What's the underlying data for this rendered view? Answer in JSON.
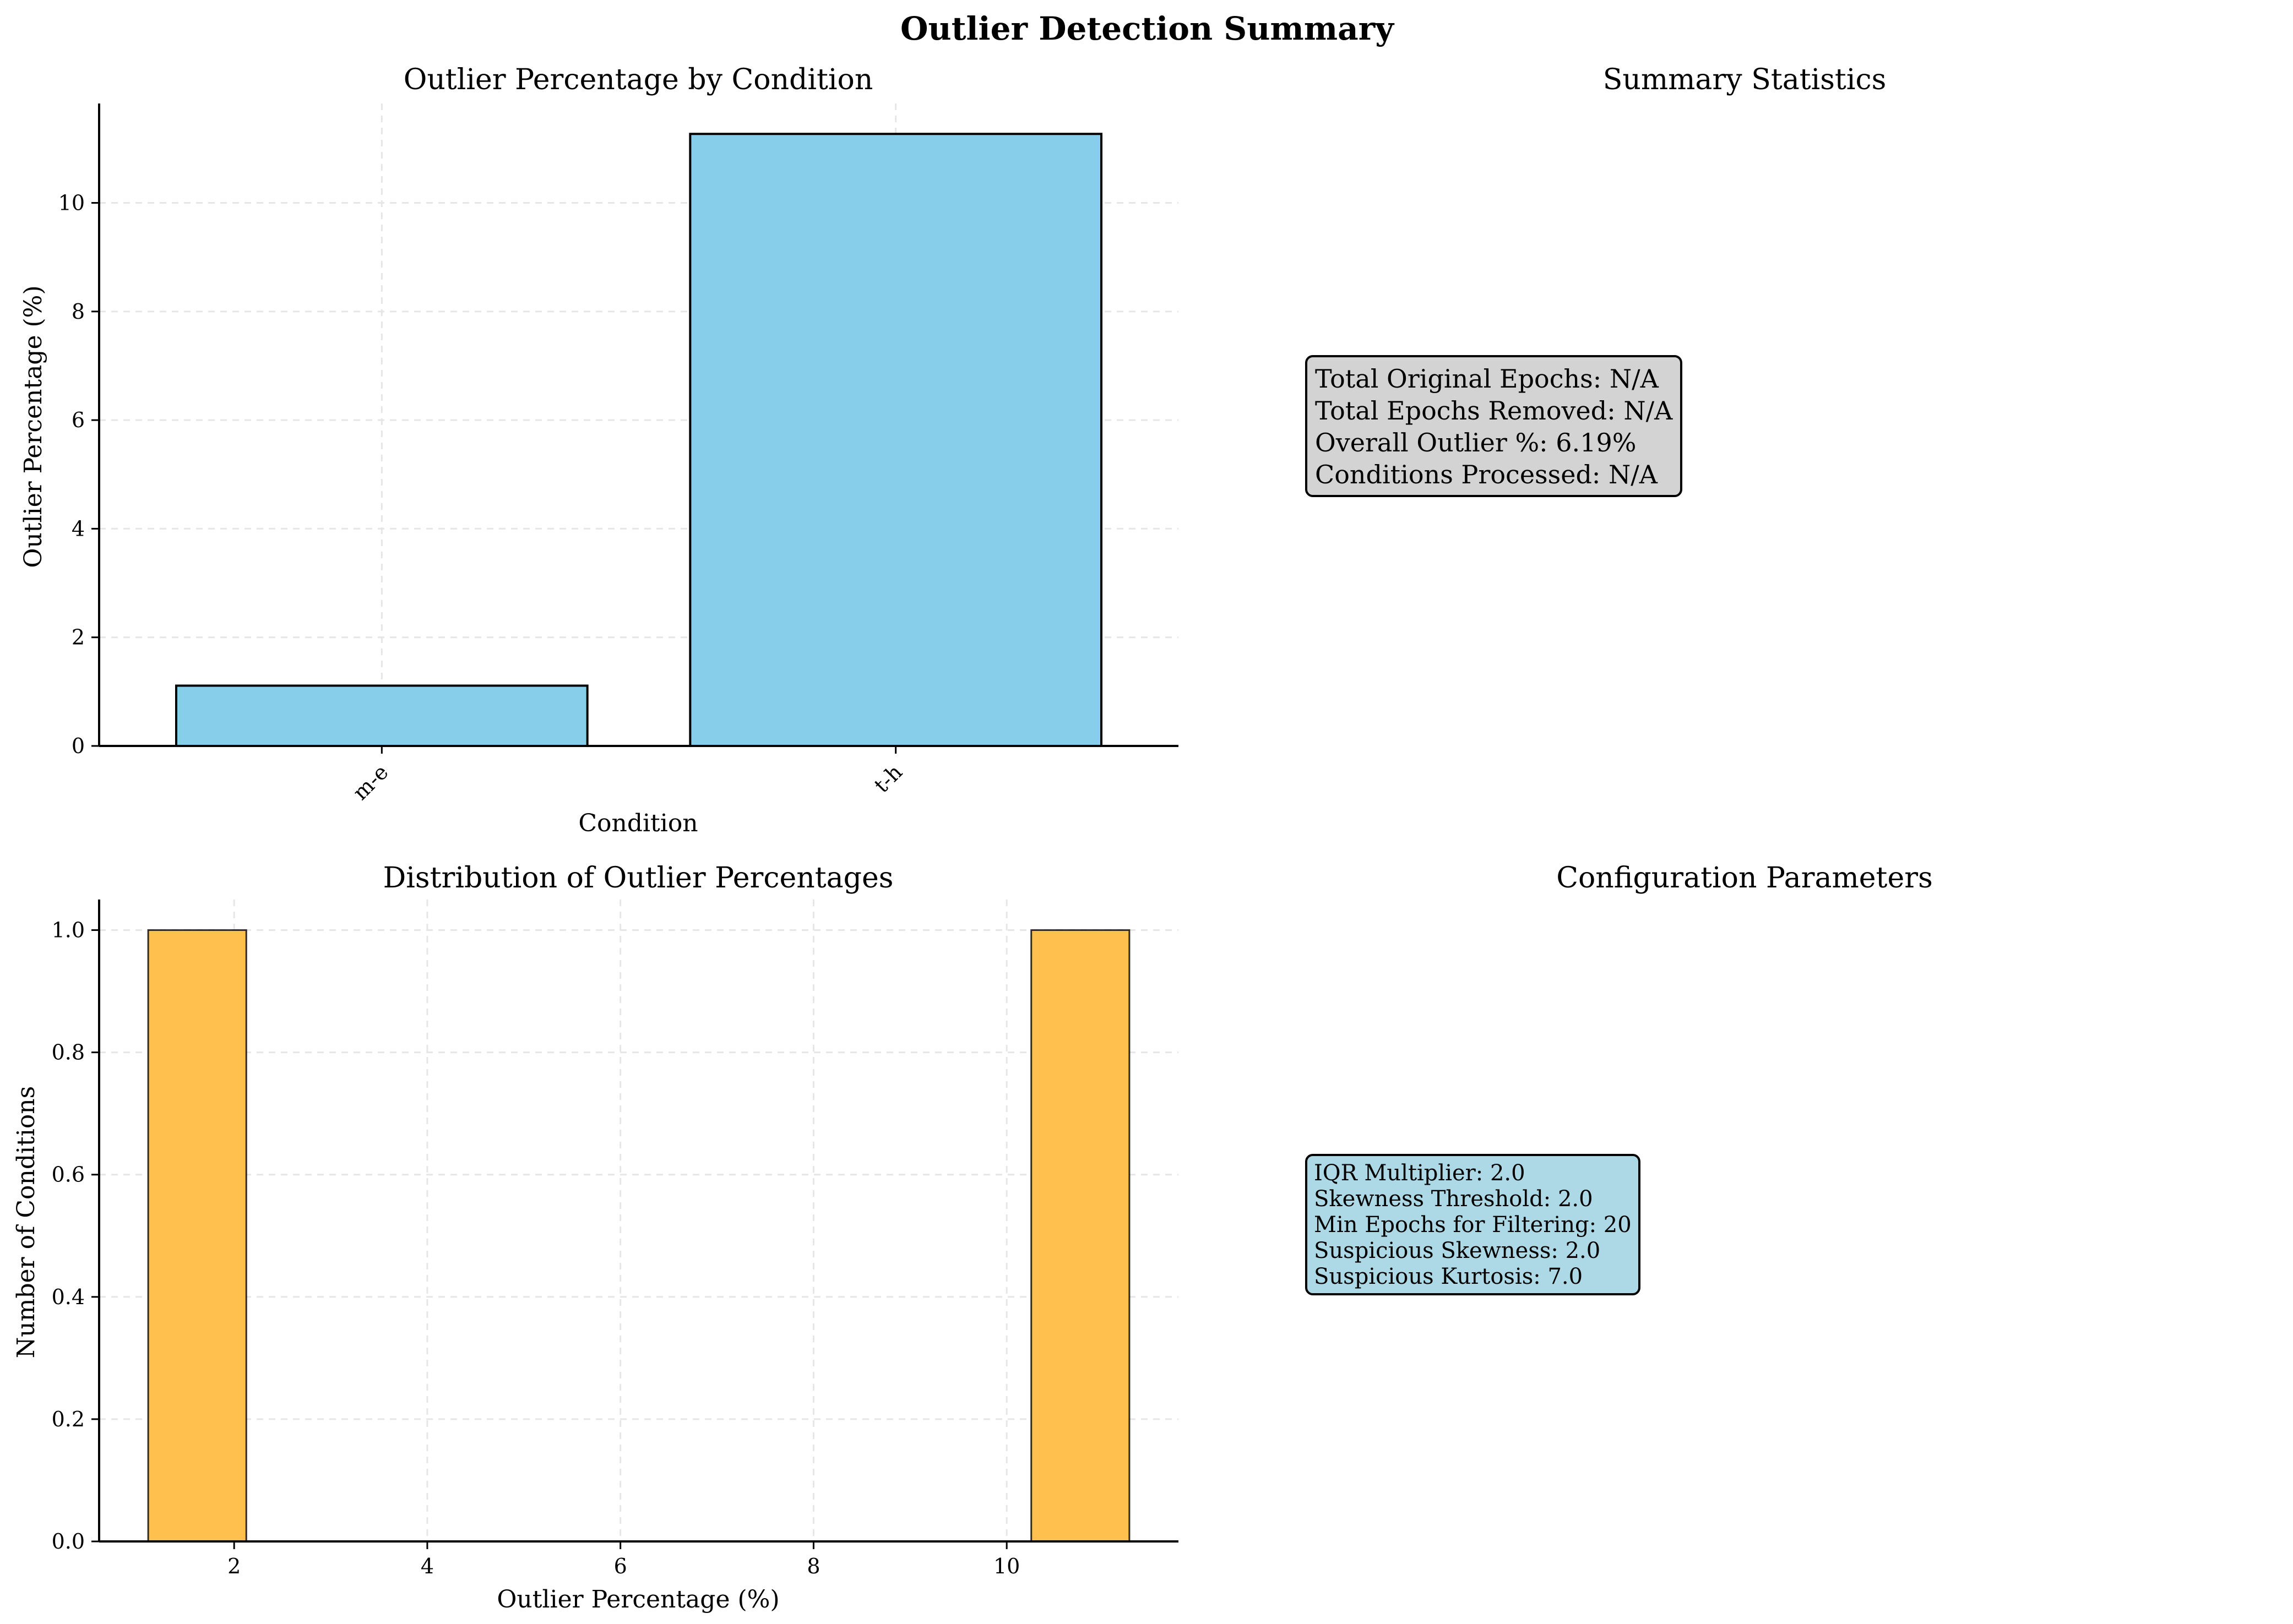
{
  "figure_title": "Outlier Detection Summary",
  "colors": {
    "bar_fill": "#87ceeb",
    "hist_fill": "#ffc04d",
    "summary_box_bg": "#d3d3d3",
    "config_box_bg": "#add8e6",
    "grid": "#e6e6e6",
    "axis": "#000000"
  },
  "summary_panel": {
    "title": "Summary Statistics",
    "lines": [
      "Total Original Epochs: N/A",
      "Total Epochs Removed: N/A",
      "Overall Outlier %: 6.19%",
      "Conditions Processed: N/A"
    ]
  },
  "config_panel": {
    "title": "Configuration Parameters",
    "lines": [
      "IQR Multiplier: 2.0",
      "Skewness Threshold: 2.0",
      "Min Epochs for Filtering: 20",
      "Suspicious Skewness: 2.0",
      "Suspicious Kurtosis: 7.0"
    ]
  },
  "chart_data": [
    {
      "type": "bar",
      "title": "Outlier Percentage by Condition",
      "xlabel": "Condition",
      "ylabel": "Outlier Percentage (%)",
      "categories": [
        "m-e",
        "t-h"
      ],
      "values": [
        1.11,
        11.27
      ],
      "ylim": [
        0,
        11.83
      ],
      "yticks": [
        0,
        2,
        4,
        6,
        8,
        10
      ],
      "ytick_labels": [
        "0",
        "2",
        "4",
        "6",
        "8",
        "10"
      ],
      "xtick_rotation": "45 degrees",
      "grid": true
    },
    {
      "type": "histogram",
      "title": "Distribution of Outlier Percentages",
      "xlabel": "Outlier Percentage (%)",
      "ylabel": "Number of Conditions",
      "bins": [
        {
          "x0": 1.11,
          "x1": 2.126,
          "count": 1
        },
        {
          "x0": 2.126,
          "x1": 3.142,
          "count": 0
        },
        {
          "x0": 3.142,
          "x1": 4.158,
          "count": 0
        },
        {
          "x0": 4.158,
          "x1": 5.174,
          "count": 0
        },
        {
          "x0": 5.174,
          "x1": 6.19,
          "count": 0
        },
        {
          "x0": 6.19,
          "x1": 7.206,
          "count": 0
        },
        {
          "x0": 7.206,
          "x1": 8.222,
          "count": 0
        },
        {
          "x0": 8.222,
          "x1": 9.238,
          "count": 0
        },
        {
          "x0": 9.238,
          "x1": 10.254,
          "count": 0
        },
        {
          "x0": 10.254,
          "x1": 11.27,
          "count": 1
        }
      ],
      "xlim": [
        0.602,
        11.778
      ],
      "ylim": [
        0,
        1.05
      ],
      "xticks": [
        2,
        4,
        6,
        8,
        10
      ],
      "xtick_labels": [
        "2",
        "4",
        "6",
        "8",
        "10"
      ],
      "yticks": [
        0.0,
        0.2,
        0.4,
        0.6,
        0.8,
        1.0
      ],
      "ytick_labels": [
        "0.0",
        "0.2",
        "0.4",
        "0.6",
        "0.8",
        "1.0"
      ],
      "grid": true
    }
  ]
}
